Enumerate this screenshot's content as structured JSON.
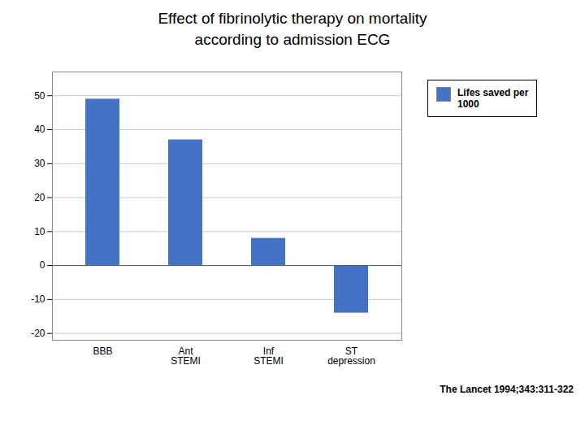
{
  "chart_data": {
    "type": "bar",
    "title": "Effect of fibrinolytic therapy on mortality",
    "subtitle": "according to admission ECG",
    "categories": [
      "BBB",
      "Ant\nSTEMI",
      "Inf\nSTEMI",
      "ST\ndepression"
    ],
    "series": [
      {
        "name": "Lifes saved per\n1000",
        "color": "#4472C4",
        "values": [
          49,
          37,
          8,
          -14
        ]
      }
    ],
    "ylim": [
      -22,
      57
    ],
    "yticks": [
      -20,
      -10,
      0,
      10,
      20,
      30,
      40,
      50
    ],
    "grid": true,
    "legend": "right",
    "annotation": "The Lancet 1994;343:311-322"
  }
}
